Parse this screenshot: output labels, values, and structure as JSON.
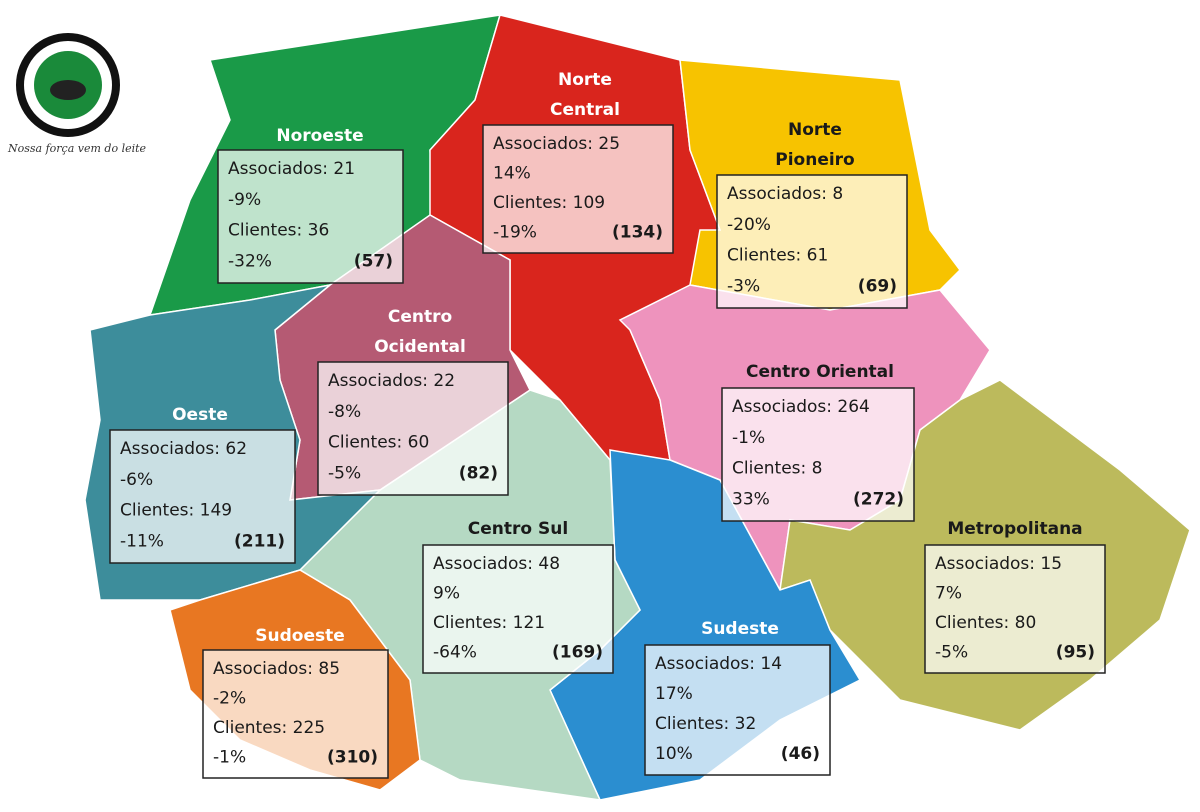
{
  "logo": {
    "slogan": "Nossa força vem do leite"
  },
  "regions": [
    {
      "name_lines": [
        "Noroeste"
      ],
      "associados": "Associados: 21",
      "associados_change": "-9%",
      "clientes": "Clientes: 36",
      "clientes_change": "-32%",
      "total": "(57)"
    },
    {
      "name_lines": [
        "Norte",
        "Central"
      ],
      "associados": "Associados: 25",
      "associados_change": "14%",
      "clientes": "Clientes: 109",
      "clientes_change": "-19%",
      "total": "(134)"
    },
    {
      "name_lines": [
        "Norte",
        "Pioneiro"
      ],
      "associados": "Associados: 8",
      "associados_change": "-20%",
      "clientes": "Clientes: 61",
      "clientes_change": "-3%",
      "total": "(69)"
    },
    {
      "name_lines": [
        "Centro",
        "Ocidental"
      ],
      "associados": "Associados: 22",
      "associados_change": "-8%",
      "clientes": "Clientes: 60",
      "clientes_change": "-5%",
      "total": "(82)"
    },
    {
      "name_lines": [
        "Oeste"
      ],
      "associados": "Associados: 62",
      "associados_change": "-6%",
      "clientes": "Clientes: 149",
      "clientes_change": "-11%",
      "total": "(211)"
    },
    {
      "name_lines": [
        "Centro Oriental"
      ],
      "associados": "Associados: 264",
      "associados_change": "-1%",
      "clientes": "Clientes: 8",
      "clientes_change": "33%",
      "total": "(272)"
    },
    {
      "name_lines": [
        "Centro Sul"
      ],
      "associados": "Associados: 48",
      "associados_change": "9%",
      "clientes": "Clientes: 121",
      "clientes_change": "-64%",
      "total": "(169)"
    },
    {
      "name_lines": [
        "Metropolitana"
      ],
      "associados": "Associados: 15",
      "associados_change": "7%",
      "clientes": "Clientes: 80",
      "clientes_change": "-5%",
      "total": "(95)"
    },
    {
      "name_lines": [
        "Sudeste"
      ],
      "associados": "Associados: 14",
      "associados_change": "17%",
      "clientes": "Clientes: 32",
      "clientes_change": "10%",
      "total": "(46)"
    },
    {
      "name_lines": [
        "Sudoeste"
      ],
      "associados": "Associados: 85",
      "associados_change": "-2%",
      "clientes": "Clientes: 225",
      "clientes_change": "-1%",
      "total": "(310)"
    }
  ]
}
